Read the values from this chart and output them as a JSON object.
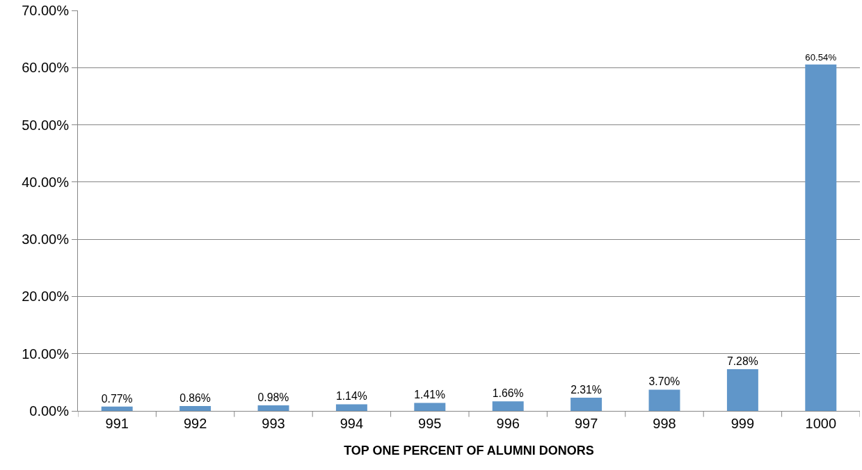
{
  "chart_data": {
    "type": "bar",
    "xlabel": "TOP ONE PERCENT OF ALUMNI DONORS",
    "categories": [
      "991",
      "992",
      "993",
      "994",
      "995",
      "996",
      "997",
      "998",
      "999",
      "1000"
    ],
    "values": [
      0.77,
      0.86,
      0.98,
      1.14,
      1.41,
      1.66,
      2.31,
      3.7,
      7.28,
      60.54
    ],
    "value_labels": [
      "0.77%",
      "0.86%",
      "0.98%",
      "1.14%",
      "1.41%",
      "1.66%",
      "2.31%",
      "3.70%",
      "7.28%",
      "60.54%"
    ],
    "color": "#6096c9",
    "ylim": [
      0,
      70
    ],
    "yticks": [
      {
        "value": 0,
        "label": "0.00%"
      },
      {
        "value": 10,
        "label": "10.00%"
      },
      {
        "value": 20,
        "label": "20.00%"
      },
      {
        "value": 30,
        "label": "30.00%"
      },
      {
        "value": 40,
        "label": "40.00%"
      },
      {
        "value": 50,
        "label": "50.00%"
      },
      {
        "value": 60,
        "label": "60.00%"
      },
      {
        "value": 70,
        "label": "70.00%"
      }
    ],
    "grid": "y",
    "legend": false
  }
}
